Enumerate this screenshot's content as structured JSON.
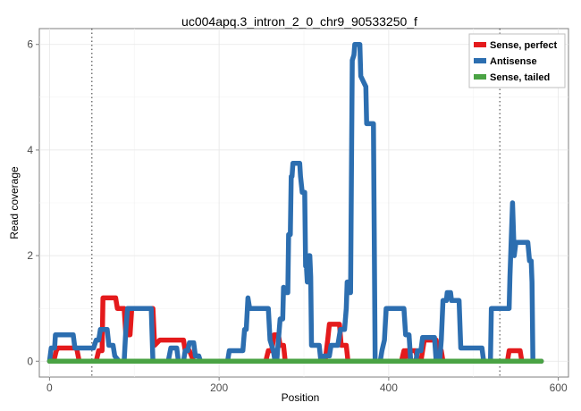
{
  "chart_data": {
    "type": "line",
    "title": "uc004apq.3_intron_2_0_chr9_90533250_f",
    "xlabel": "Position",
    "ylabel": "Read coverage",
    "xlim": [
      -12,
      612
    ],
    "ylim": [
      -0.3,
      6.3
    ],
    "xticks": [
      0,
      200,
      400,
      600
    ],
    "yticks": [
      0,
      2,
      4,
      6
    ],
    "grid": true,
    "legend_position": "top-right",
    "vlines": [
      50,
      531
    ],
    "series": [
      {
        "name": "Sense, perfect",
        "color": "#e41a1c",
        "points": [
          [
            0,
            0
          ],
          [
            5,
            0
          ],
          [
            8,
            0.2
          ],
          [
            10,
            0.25
          ],
          [
            32,
            0.25
          ],
          [
            35,
            0
          ],
          [
            55,
            0
          ],
          [
            58,
            0.2
          ],
          [
            62,
            0.2
          ],
          [
            63,
            1.2
          ],
          [
            78,
            1.2
          ],
          [
            80,
            1.0
          ],
          [
            88,
            1.0
          ],
          [
            90,
            0.5
          ],
          [
            95,
            0.5
          ],
          [
            97,
            1.0
          ],
          [
            122,
            1.0
          ],
          [
            124,
            0.3
          ],
          [
            130,
            0.4
          ],
          [
            158,
            0.4
          ],
          [
            160,
            0.2
          ],
          [
            165,
            0.2
          ],
          [
            170,
            0
          ],
          [
            255,
            0
          ],
          [
            258,
            0.2
          ],
          [
            262,
            0.2
          ],
          [
            265,
            0.5
          ],
          [
            270,
            0.5
          ],
          [
            272,
            0.3
          ],
          [
            276,
            0.3
          ],
          [
            278,
            0
          ],
          [
            325,
            0
          ],
          [
            328,
            0.4
          ],
          [
            330,
            0.7
          ],
          [
            342,
            0.7
          ],
          [
            344,
            0.3
          ],
          [
            350,
            0.3
          ],
          [
            352,
            0
          ],
          [
            415,
            0
          ],
          [
            418,
            0.2
          ],
          [
            428,
            0
          ],
          [
            418,
            0
          ],
          [
            420,
            0.2
          ],
          [
            432,
            0.2
          ],
          [
            434,
            0
          ],
          [
            415,
            0
          ],
          [
            438,
            0
          ],
          [
            440,
            0.2
          ],
          [
            442,
            0.4
          ],
          [
            456,
            0.4
          ],
          [
            458,
            0.2
          ],
          [
            462,
            0.2
          ],
          [
            464,
            0
          ],
          [
            540,
            0
          ],
          [
            542,
            0.2
          ],
          [
            555,
            0.2
          ],
          [
            557,
            0
          ],
          [
            580,
            0
          ]
        ]
      },
      {
        "name": "Antisense",
        "color": "#2c6eb0",
        "points": [
          [
            0,
            0
          ],
          [
            2,
            0.25
          ],
          [
            6,
            0.25
          ],
          [
            7,
            0.5
          ],
          [
            28,
            0.5
          ],
          [
            30,
            0.25
          ],
          [
            52,
            0.25
          ],
          [
            55,
            0.4
          ],
          [
            58,
            0.4
          ],
          [
            60,
            0.6
          ],
          [
            68,
            0.6
          ],
          [
            70,
            0.3
          ],
          [
            75,
            0.3
          ],
          [
            77,
            0.1
          ],
          [
            82,
            0
          ],
          [
            88,
            0
          ],
          [
            90,
            0.6
          ],
          [
            92,
            1.0
          ],
          [
            120,
            1.0
          ],
          [
            122,
            0
          ],
          [
            140,
            0
          ],
          [
            143,
            0.25
          ],
          [
            150,
            0.25
          ],
          [
            152,
            0
          ],
          [
            158,
            0
          ],
          [
            160,
            0.2
          ],
          [
            163,
            0.2
          ],
          [
            165,
            0.35
          ],
          [
            170,
            0.35
          ],
          [
            172,
            0.1
          ],
          [
            176,
            0.1
          ],
          [
            178,
            0
          ],
          [
            210,
            0
          ],
          [
            212,
            0.2
          ],
          [
            228,
            0.2
          ],
          [
            230,
            0.6
          ],
          [
            232,
            0.6
          ],
          [
            234,
            1.2
          ],
          [
            236,
            1.0
          ],
          [
            258,
            1.0
          ],
          [
            260,
            0.4
          ],
          [
            264,
            0.2
          ],
          [
            266,
            0
          ],
          [
            268,
            0
          ],
          [
            270,
            0.4
          ],
          [
            272,
            0.8
          ],
          [
            275,
            0.8
          ],
          [
            276,
            1.4
          ],
          [
            278,
            1.3
          ],
          [
            281,
            1.3
          ],
          [
            282,
            2.4
          ],
          [
            284,
            2.4
          ],
          [
            285,
            3.5
          ],
          [
            286,
            3.5
          ],
          [
            287,
            3.75
          ],
          [
            295,
            3.75
          ],
          [
            296,
            3.5
          ],
          [
            298,
            3.2
          ],
          [
            301,
            3.2
          ],
          [
            302,
            1.8
          ],
          [
            303,
            1.8
          ],
          [
            304,
            1.5
          ],
          [
            305,
            1.5
          ],
          [
            306,
            2.0
          ],
          [
            307,
            2.0
          ],
          [
            308,
            1.6
          ],
          [
            309,
            0.3
          ],
          [
            318,
            0.3
          ],
          [
            320,
            0
          ],
          [
            322,
            0
          ],
          [
            324,
            0.1
          ],
          [
            330,
            0.1
          ],
          [
            332,
            0.3
          ],
          [
            340,
            0.3
          ],
          [
            343,
            0.6
          ],
          [
            348,
            0.6
          ],
          [
            350,
            1.0
          ],
          [
            351,
            1.5
          ],
          [
            352,
            1.5
          ],
          [
            353,
            1.3
          ],
          [
            355,
            1.3
          ],
          [
            357,
            5.7
          ],
          [
            359,
            5.8
          ],
          [
            360,
            6.0
          ],
          [
            366,
            6.0
          ],
          [
            367,
            5.4
          ],
          [
            370,
            5.3
          ],
          [
            373,
            5.2
          ],
          [
            374,
            4.5
          ],
          [
            382,
            4.5
          ],
          [
            384,
            0
          ],
          [
            390,
            0
          ],
          [
            392,
            0.2
          ],
          [
            395,
            0.4
          ],
          [
            397,
            1.0
          ],
          [
            418,
            1.0
          ],
          [
            420,
            0.5
          ],
          [
            424,
            0.5
          ],
          [
            426,
            0
          ],
          [
            432,
            0
          ],
          [
            434,
            0.2
          ],
          [
            438,
            0.2
          ],
          [
            440,
            0.45
          ],
          [
            454,
            0.45
          ],
          [
            456,
            0
          ],
          [
            460,
            0
          ],
          [
            462,
            0.4
          ],
          [
            464,
            1.15
          ],
          [
            468,
            1.15
          ],
          [
            469,
            1.3
          ],
          [
            473,
            1.3
          ],
          [
            474,
            1.15
          ],
          [
            483,
            1.15
          ],
          [
            485,
            0.25
          ],
          [
            510,
            0.25
          ],
          [
            512,
            0
          ],
          [
            520,
            0
          ],
          [
            521,
            1.0
          ],
          [
            542,
            1.0
          ],
          [
            543,
            1.6
          ],
          [
            546,
            3.0
          ],
          [
            548,
            2.0
          ],
          [
            550,
            2.25
          ],
          [
            564,
            2.25
          ],
          [
            566,
            1.9
          ],
          [
            568,
            1.9
          ],
          [
            569,
            1.5
          ],
          [
            570,
            0
          ],
          [
            580,
            0
          ]
        ]
      },
      {
        "name": "Sense, tailed",
        "color": "#4aa344",
        "points": [
          [
            0,
            0
          ],
          [
            580,
            0
          ]
        ]
      }
    ]
  }
}
